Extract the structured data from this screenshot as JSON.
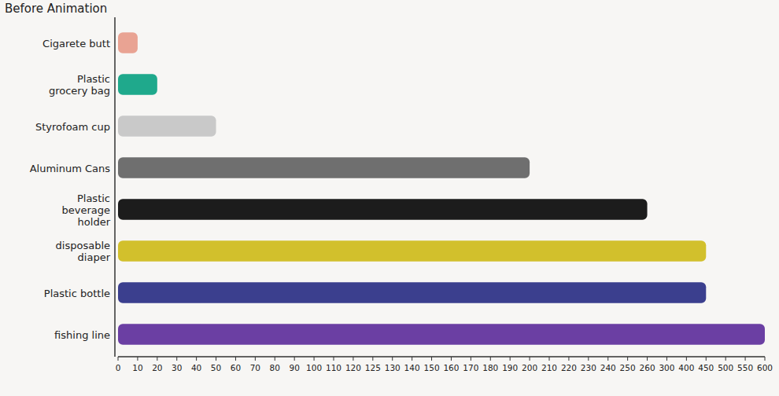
{
  "chart_data": {
    "type": "bar",
    "orientation": "horizontal",
    "title": "Before Animation",
    "categories": [
      "Cigarete butt",
      "Plastic grocery bag",
      "Styrofoam cup",
      "Aluminum Cans",
      "Plastic beverage holder",
      "disposable diaper",
      "Plastic bottle",
      "fishing line"
    ],
    "values": [
      10,
      20,
      50,
      200,
      260,
      450,
      450,
      600
    ],
    "colors": [
      "#e9a393",
      "#1fa98c",
      "#c9c9c9",
      "#6f6f6f",
      "#1c1c1c",
      "#d2c02c",
      "#3b3f8e",
      "#6b3fa3"
    ],
    "xlim": [
      0,
      600
    ],
    "xticks": [
      0,
      10,
      20,
      30,
      40,
      50,
      60,
      70,
      80,
      90,
      100,
      110,
      120,
      125,
      130,
      140,
      150,
      160,
      170,
      180,
      190,
      200,
      210,
      220,
      230,
      240,
      250,
      260,
      300,
      400,
      450,
      500,
      550,
      600
    ],
    "grid": false
  }
}
